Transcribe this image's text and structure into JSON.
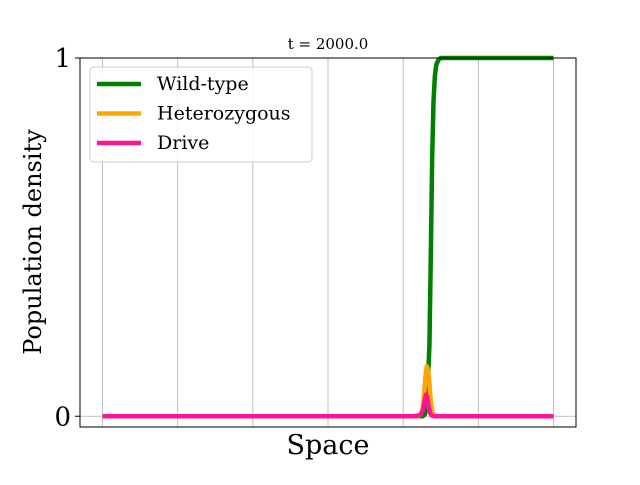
{
  "chart_data": {
    "type": "line",
    "title": "t = 2000.0",
    "xlabel": "Space",
    "ylabel": "Population density",
    "xlim": [
      -0.05,
      1.05
    ],
    "ylim": [
      -0.03,
      1.0
    ],
    "yticks": [
      0,
      1
    ],
    "ytick_labels": [
      "0",
      "1"
    ],
    "grid": true,
    "legend_position": "top-left",
    "series": [
      {
        "name": "Wild-type",
        "color": "#008000",
        "x": [
          0.0,
          0.6,
          0.66,
          0.7,
          0.71,
          0.715,
          0.72,
          0.725,
          0.728,
          0.731,
          0.734,
          0.737,
          0.74,
          0.745,
          0.75,
          0.76,
          0.8,
          0.9,
          1.0
        ],
        "y": [
          0.0,
          0.0,
          0.0,
          0.0,
          0.0,
          0.005,
          0.05,
          0.2,
          0.45,
          0.72,
          0.88,
          0.95,
          0.98,
          0.995,
          1.0,
          1.0,
          1.0,
          1.0,
          1.0
        ]
      },
      {
        "name": "Heterozygous",
        "color": "#FFA500",
        "x": [
          0.0,
          0.68,
          0.7,
          0.705,
          0.71,
          0.713,
          0.716,
          0.719,
          0.722,
          0.725,
          0.728,
          0.731,
          0.735,
          0.74,
          0.8,
          1.0
        ],
        "y": [
          0.0,
          0.0,
          0.0,
          0.005,
          0.02,
          0.06,
          0.11,
          0.14,
          0.13,
          0.09,
          0.04,
          0.015,
          0.004,
          0.0,
          0.0,
          0.0
        ]
      },
      {
        "name": "Drive",
        "color": "#FF1493",
        "x": [
          0.0,
          0.69,
          0.705,
          0.71,
          0.714,
          0.717,
          0.72,
          0.723,
          0.726,
          0.73,
          0.735,
          0.8,
          1.0
        ],
        "y": [
          0.0,
          0.0,
          0.003,
          0.015,
          0.04,
          0.06,
          0.055,
          0.03,
          0.01,
          0.002,
          0.0,
          0.0,
          0.0
        ]
      }
    ]
  }
}
